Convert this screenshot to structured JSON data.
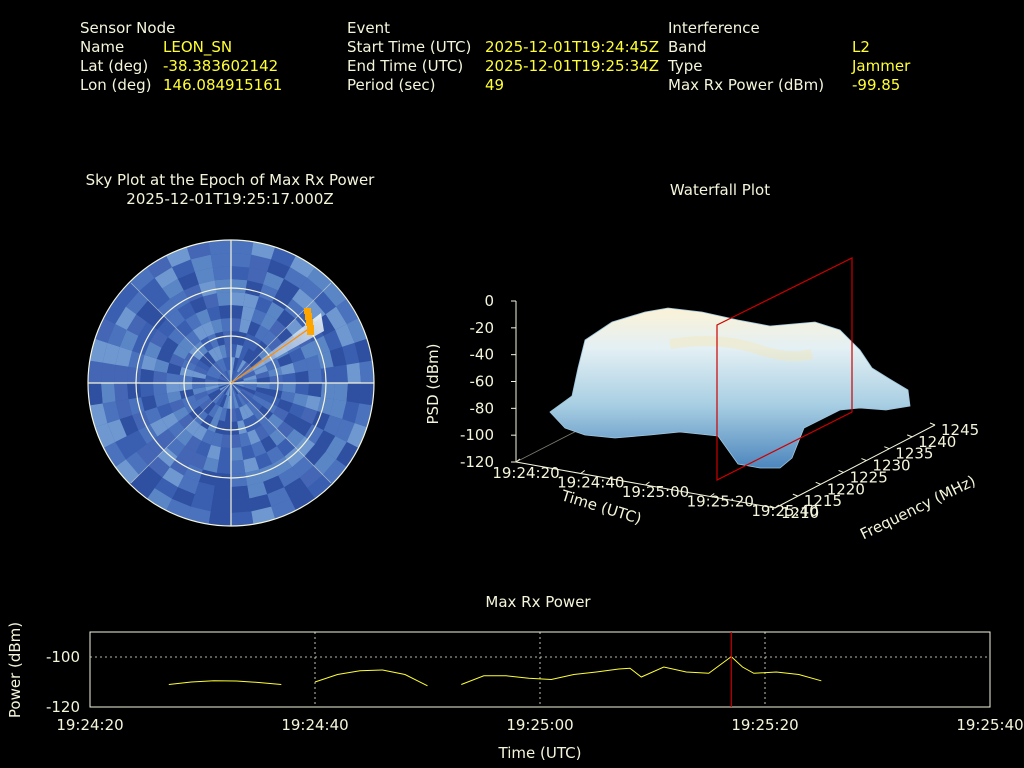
{
  "info": {
    "sensor": {
      "header": "Sensor Node",
      "name_label": "Name",
      "name_value": "LEON_SN",
      "lat_label": "Lat (deg)",
      "lat_value": "-38.383602142",
      "lon_label": "Lon (deg)",
      "lon_value": "146.084915161"
    },
    "event": {
      "header": "Event",
      "start_label": "Start Time (UTC)",
      "start_value": "2025-12-01T19:24:45Z",
      "end_label": "End Time (UTC)",
      "end_value": "2025-12-01T19:25:34Z",
      "period_label": "Period (sec)",
      "period_value": "49"
    },
    "interference": {
      "header": "Interference",
      "band_label": "Band",
      "band_value": "L2",
      "type_label": "Type",
      "type_value": "Jammer",
      "max_label": "Max Rx Power (dBm)",
      "max_value": "-99.85"
    }
  },
  "colors": {
    "background": "#000000",
    "label": "#f5f5dc",
    "value": "#ffff33",
    "marker": "#cc0000",
    "trace": "#ffff33",
    "sky": "#3a5fb0",
    "waterfall_peak": "#f3e6b8"
  },
  "chart_data": [
    {
      "type": "polar",
      "title": "Sky Plot at the Epoch of Max Rx Power",
      "subtitle": "2025-12-01T19:25:17.000Z",
      "rings": 3,
      "grid": true
    },
    {
      "type": "surface",
      "title": "Waterfall Plot",
      "xlabel": "Time (UTC)",
      "ylabel": "Frequency (MHz)",
      "zlabel": "PSD (dBm)",
      "x_ticks": [
        "19:24:20",
        "19:24:40",
        "19:25:00",
        "19:25:20",
        "19:25:40"
      ],
      "y_ticks": [
        "1210",
        "1215",
        "1220",
        "1225",
        "1230",
        "1235",
        "1240",
        "1245"
      ],
      "z_ticks": [
        "0",
        "-20",
        "-40",
        "-60",
        "-80",
        "-100",
        "-120"
      ],
      "zlim": [
        -120,
        0
      ],
      "marker_time": "19:25:17"
    },
    {
      "type": "line",
      "title": "Max Rx Power",
      "xlabel": "Time (UTC)",
      "ylabel": "Power (dBm)",
      "x_ticks": [
        "19:24:20",
        "19:24:40",
        "19:25:00",
        "19:25:20",
        "19:25:40"
      ],
      "y_ticks": [
        "-100",
        "-120"
      ],
      "ylim": [
        -120,
        -90
      ],
      "grid": true,
      "marker_time": "19:25:17",
      "series": [
        {
          "segments": [
            {
              "x": [
                "19:24:27",
                "19:24:29",
                "19:24:31",
                "19:24:33",
                "19:24:35",
                "19:24:37"
              ],
              "y": [
                -111,
                -110,
                -109.5,
                -109.6,
                -110.2,
                -111
              ]
            },
            {
              "x": [
                "19:24:40",
                "19:24:42",
                "19:24:44",
                "19:24:46",
                "19:24:48",
                "19:24:50"
              ],
              "y": [
                -110,
                -107,
                -105.5,
                -105.2,
                -107,
                -111.5
              ]
            },
            {
              "x": [
                "19:24:53",
                "19:24:55",
                "19:24:57",
                "19:24:59",
                "19:25:01",
                "19:25:03",
                "19:25:05",
                "19:25:07",
                "19:25:08",
                "19:25:09",
                "19:25:11",
                "19:25:13",
                "19:25:15",
                "19:25:17",
                "19:25:18",
                "19:25:19",
                "19:25:21",
                "19:25:23",
                "19:25:25"
              ],
              "y": [
                -111,
                -107.5,
                -107.5,
                -108.5,
                -109,
                -107,
                -106,
                -104.8,
                -104.5,
                -108,
                -104,
                -106,
                -106.5,
                -99.85,
                -104,
                -106.5,
                -106,
                -107,
                -109.5
              ]
            }
          ]
        }
      ]
    }
  ]
}
